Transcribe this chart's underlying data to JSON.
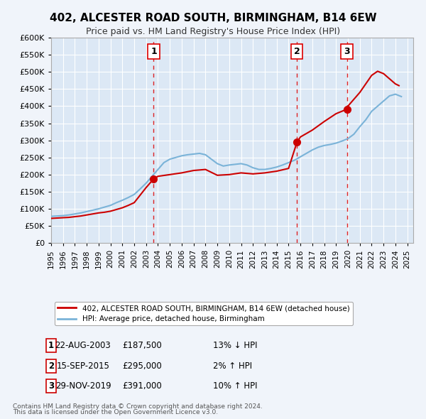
{
  "title": "402, ALCESTER ROAD SOUTH, BIRMINGHAM, B14 6EW",
  "subtitle": "Price paid vs. HM Land Registry's House Price Index (HPI)",
  "xlabel": "",
  "ylabel": "",
  "ylim": [
    0,
    600000
  ],
  "yticks": [
    0,
    50000,
    100000,
    150000,
    200000,
    250000,
    300000,
    350000,
    400000,
    450000,
    500000,
    550000,
    600000
  ],
  "xlim": [
    1995,
    2025.5
  ],
  "background_color": "#f0f4fa",
  "plot_bg_color": "#dce8f5",
  "grid_color": "#ffffff",
  "red_line_color": "#cc0000",
  "blue_line_color": "#7ab3d8",
  "sale_marker_color": "#cc0000",
  "vline_color": "#dd0000",
  "legend_label_red": "402, ALCESTER ROAD SOUTH, BIRMINGHAM, B14 6EW (detached house)",
  "legend_label_blue": "HPI: Average price, detached house, Birmingham",
  "sales": [
    {
      "id": 1,
      "date": 2003.64,
      "price": 187500,
      "label": "1",
      "pct": "13%",
      "dir": "↓",
      "date_str": "22-AUG-2003"
    },
    {
      "id": 2,
      "date": 2015.71,
      "price": 295000,
      "label": "2",
      "pct": "2%",
      "dir": "↑",
      "date_str": "15-SEP-2015"
    },
    {
      "id": 3,
      "date": 2019.91,
      "price": 391000,
      "label": "3",
      "pct": "10%",
      "dir": "↑",
      "date_str": "29-NOV-2019"
    }
  ],
  "hpi_x": [
    1995,
    1995.5,
    1996,
    1996.5,
    1997,
    1997.5,
    1998,
    1998.5,
    1999,
    1999.5,
    2000,
    2000.5,
    2001,
    2001.5,
    2002,
    2002.5,
    2003,
    2003.5,
    2004,
    2004.5,
    2005,
    2005.5,
    2006,
    2006.5,
    2007,
    2007.5,
    2008,
    2008.5,
    2009,
    2009.5,
    2010,
    2010.5,
    2011,
    2011.5,
    2012,
    2012.5,
    2013,
    2013.5,
    2014,
    2014.5,
    2015,
    2015.5,
    2016,
    2016.5,
    2017,
    2017.5,
    2018,
    2018.5,
    2019,
    2019.5,
    2020,
    2020.5,
    2021,
    2021.5,
    2022,
    2022.5,
    2023,
    2023.5,
    2024,
    2024.5
  ],
  "hpi_y": [
    78000,
    79000,
    80000,
    82000,
    85000,
    88000,
    92000,
    96000,
    100000,
    105000,
    110000,
    118000,
    125000,
    133000,
    142000,
    158000,
    175000,
    195000,
    215000,
    235000,
    245000,
    250000,
    255000,
    258000,
    260000,
    262000,
    258000,
    245000,
    232000,
    225000,
    228000,
    230000,
    232000,
    228000,
    220000,
    215000,
    215000,
    218000,
    222000,
    228000,
    235000,
    242000,
    252000,
    262000,
    272000,
    280000,
    285000,
    288000,
    292000,
    298000,
    305000,
    318000,
    340000,
    360000,
    385000,
    400000,
    415000,
    430000,
    435000,
    428000
  ],
  "price_x": [
    1995,
    1995.5,
    1996,
    1996.5,
    1997,
    1997.5,
    1998,
    1998.5,
    1999,
    1999.5,
    2000,
    2000.5,
    2001,
    2001.5,
    2002,
    2002.5,
    2003,
    2003.64,
    2004,
    2005,
    2006,
    2007,
    2008,
    2009,
    2010,
    2011,
    2012,
    2013,
    2014,
    2015,
    2015.71,
    2016,
    2017,
    2018,
    2019,
    2019.91,
    2020,
    2021,
    2022,
    2022.5,
    2023,
    2023.5,
    2024,
    2024.3
  ],
  "price_y": [
    72000,
    73000,
    74000,
    75000,
    77000,
    79000,
    82000,
    85000,
    88000,
    90000,
    93000,
    98000,
    103000,
    110000,
    118000,
    140000,
    162000,
    187500,
    195000,
    200000,
    205000,
    212000,
    215000,
    198000,
    200000,
    205000,
    202000,
    205000,
    210000,
    218000,
    295000,
    310000,
    330000,
    355000,
    378000,
    391000,
    400000,
    440000,
    490000,
    502000,
    495000,
    480000,
    465000,
    460000
  ],
  "footnote1": "Contains HM Land Registry data © Crown copyright and database right 2024.",
  "footnote2": "This data is licensed under the Open Government Licence v3.0."
}
